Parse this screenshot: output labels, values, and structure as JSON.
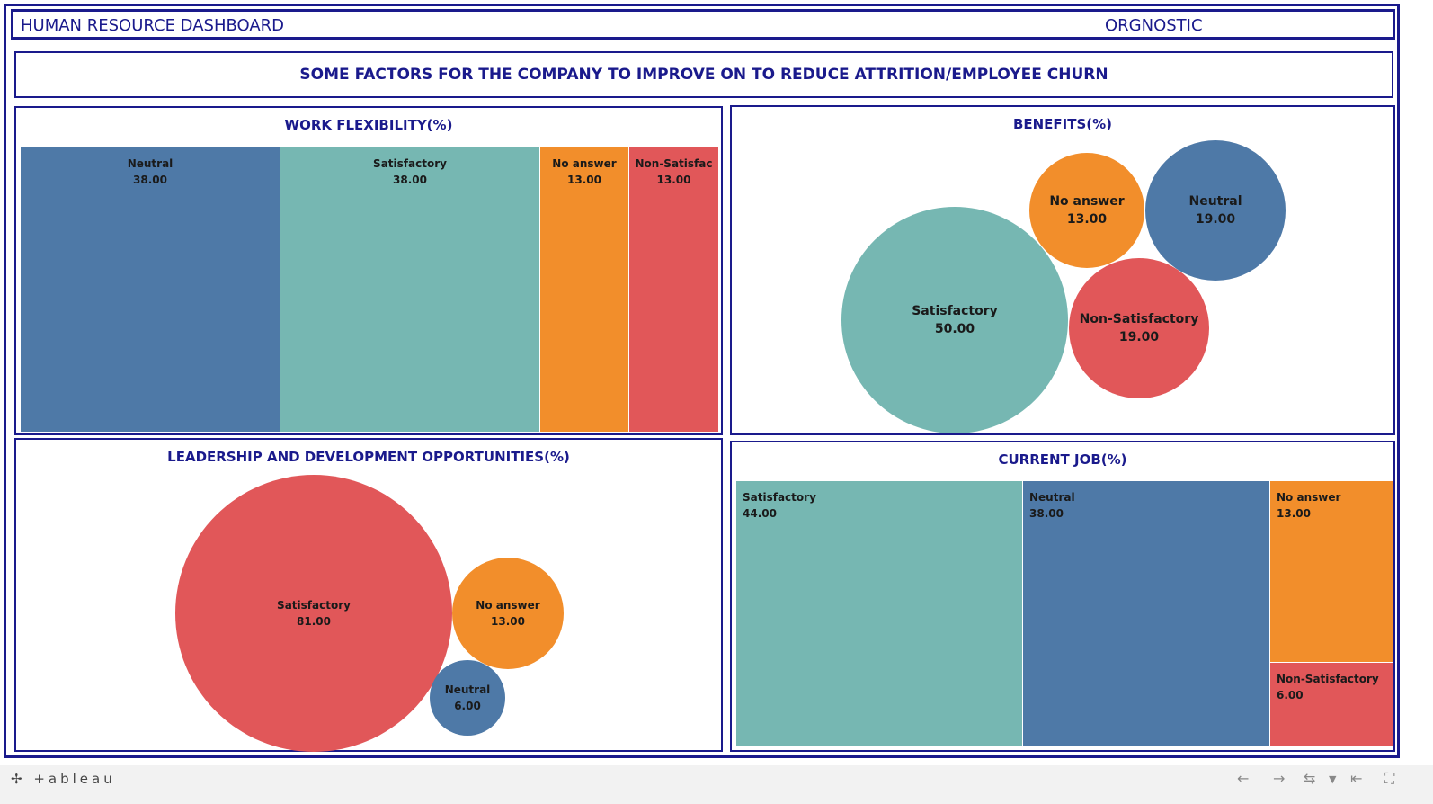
{
  "header": {
    "title": "HUMAN RESOURCE DASHBOARD",
    "brand": "ORGNOSTIC"
  },
  "subtitle": "SOME FACTORS FOR THE COMPANY TO IMPROVE ON TO REDUCE ATTRITION/EMPLOYEE CHURN",
  "colors": {
    "border": "#1a1a8c",
    "blue": "#4e79a7",
    "teal": "#76b7b2",
    "orange": "#f28e2b",
    "red": "#e15759"
  },
  "chart_data": [
    {
      "type": "treemap",
      "title": "WORK FLEXIBILITY(%)",
      "items": [
        {
          "label": "Neutral",
          "value": 38.0,
          "display": "38.00",
          "color": "#4e79a7"
        },
        {
          "label": "Satisfactory",
          "value": 38.0,
          "display": "38.00",
          "color": "#76b7b2"
        },
        {
          "label": "No answer",
          "value": 13.0,
          "display": "13.00",
          "color": "#f28e2b"
        },
        {
          "label": "Non-Satisfac",
          "value": 13.0,
          "display": "13.00",
          "color": "#e15759"
        }
      ]
    },
    {
      "type": "bubble",
      "title": "BENEFITS(%)",
      "items": [
        {
          "label": "Satisfactory",
          "value": 50.0,
          "display": "50.00",
          "color": "#76b7b2"
        },
        {
          "label": "No answer",
          "value": 13.0,
          "display": "13.00",
          "color": "#f28e2b"
        },
        {
          "label": "Neutral",
          "value": 19.0,
          "display": "19.00",
          "color": "#4e79a7"
        },
        {
          "label": "Non-Satisfactory",
          "value": 19.0,
          "display": "19.00",
          "color": "#e15759"
        }
      ]
    },
    {
      "type": "bubble",
      "title": "LEADERSHIP AND DEVELOPMENT OPPORTUNITIES(%)",
      "items": [
        {
          "label": "Satisfactory",
          "value": 81.0,
          "display": "81.00",
          "color": "#e15759"
        },
        {
          "label": "No answer",
          "value": 13.0,
          "display": "13.00",
          "color": "#f28e2b"
        },
        {
          "label": "Neutral",
          "value": 6.0,
          "display": "6.00",
          "color": "#4e79a7"
        }
      ]
    },
    {
      "type": "treemap",
      "title": "CURRENT JOB(%)",
      "items": [
        {
          "label": "Satisfactory",
          "value": 44.0,
          "display": "44.00",
          "color": "#76b7b2"
        },
        {
          "label": "Neutral",
          "value": 38.0,
          "display": "38.00",
          "color": "#4e79a7"
        },
        {
          "label": "No answer",
          "value": 13.0,
          "display": "13.00",
          "color": "#f28e2b"
        },
        {
          "label": "Non-Satisfactory",
          "value": 6.0,
          "display": "6.00",
          "color": "#e15759"
        }
      ]
    }
  ],
  "footer": {
    "logo": "+ableau"
  }
}
